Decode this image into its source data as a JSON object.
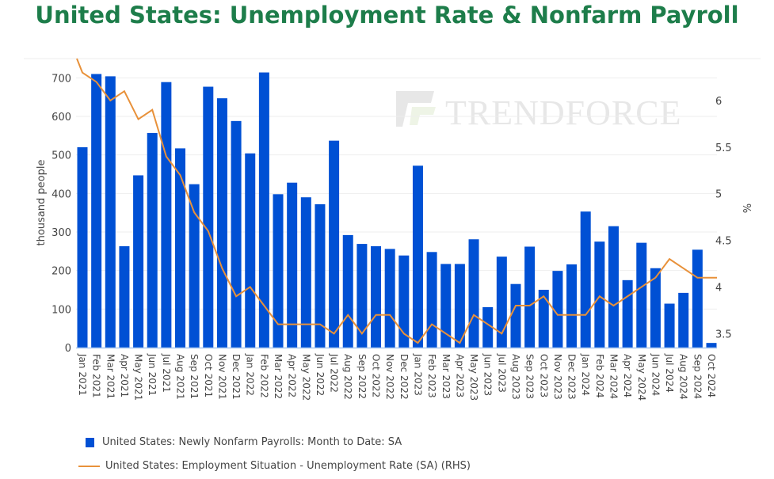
{
  "title": "United States: Unemployment Rate & Nonfarm Payroll",
  "watermark": "TrendForce",
  "chart_data": {
    "type": "bar+line",
    "title": "United States: Unemployment Rate & Nonfarm Payroll",
    "ylabel": "thousand people",
    "y2label": "%",
    "ylim": [
      0,
      750
    ],
    "y2lim": [
      3.35,
      6.45
    ],
    "yticks": [
      0,
      100,
      200,
      300,
      400,
      500,
      600,
      700
    ],
    "y2ticks": [
      "3.5",
      "4",
      "4.5",
      "5",
      "5.5",
      "6"
    ],
    "grid": true,
    "legend_position": "bottom",
    "categories": [
      "Jan 2021",
      "Feb 2021",
      "Mar 2021",
      "Apr 2021",
      "May 2021",
      "Jun 2021",
      "Jul 2021",
      "Aug 2021",
      "Sep 2021",
      "Oct 2021",
      "Nov 2021",
      "Dec 2021",
      "Jan 2022",
      "Feb 2022",
      "Mar 2022",
      "Apr 2022",
      "May 2022",
      "Jun 2022",
      "Jul 2022",
      "Aug 2022",
      "Sep 2022",
      "Oct 2022",
      "Nov 2022",
      "Dec 2022",
      "Jan 2023",
      "Feb 2023",
      "Mar 2023",
      "Apr 2023",
      "May 2023",
      "Jun 2023",
      "Jul 2023",
      "Aug 2023",
      "Sep 2023",
      "Oct 2023",
      "Nov 2023",
      "Dec 2023",
      "Jan 2024",
      "Feb 2024",
      "Mar 2024",
      "Apr 2024",
      "May 2024",
      "Jun 2024",
      "Jul 2024",
      "Aug 2024",
      "Sep 2024",
      "Oct 2024"
    ],
    "series": [
      {
        "name": "United States: Newly Nonfarm Payrolls: Month to Date: SA",
        "type": "bar",
        "axis": "left",
        "color": "#0050d4",
        "values": [
          520,
          710,
          704,
          263,
          447,
          557,
          689,
          517,
          424,
          677,
          647,
          588,
          504,
          714,
          398,
          428,
          390,
          372,
          537,
          292,
          269,
          263,
          256,
          239,
          472,
          248,
          217,
          217,
          281,
          105,
          236,
          165,
          262,
          150,
          199,
          216,
          353,
          275,
          315,
          175,
          272,
          206,
          114,
          142,
          254,
          12
        ]
      },
      {
        "name": "United States: Employment Situation - Unemployment Rate (SA) (RHS)",
        "type": "line",
        "axis": "right",
        "color": "#e8913a",
        "values": [
          6.3,
          6.2,
          6.0,
          6.1,
          5.8,
          5.9,
          5.4,
          5.2,
          4.8,
          4.6,
          4.2,
          3.9,
          4.0,
          3.8,
          3.6,
          3.6,
          3.6,
          3.6,
          3.5,
          3.7,
          3.5,
          3.7,
          3.7,
          3.5,
          3.4,
          3.6,
          3.5,
          3.4,
          3.7,
          3.6,
          3.5,
          3.8,
          3.8,
          3.9,
          3.7,
          3.7,
          3.7,
          3.9,
          3.8,
          3.9,
          4.0,
          4.1,
          4.3,
          4.2,
          4.1,
          4.1
        ]
      }
    ]
  }
}
